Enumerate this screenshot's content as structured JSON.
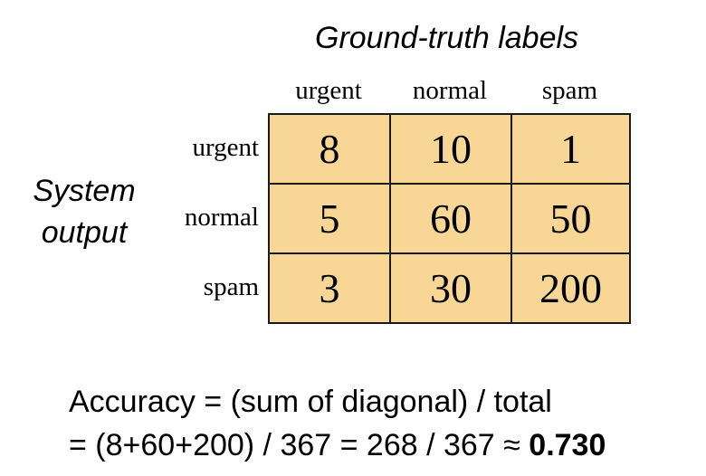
{
  "header": {
    "ground_truth_label": "Ground-truth labels"
  },
  "side": {
    "system_output_line1": "System",
    "system_output_line2": "output"
  },
  "columns": [
    "urgent",
    "normal",
    "spam"
  ],
  "rows": [
    {
      "label": "urgent",
      "cells": [
        "8",
        "10",
        "1"
      ]
    },
    {
      "label": "normal",
      "cells": [
        "5",
        "60",
        "50"
      ]
    },
    {
      "label": "spam",
      "cells": [
        "3",
        "30",
        "200"
      ]
    }
  ],
  "formula": {
    "line1": "Accuracy = (sum of diagonal) / total",
    "line2_prefix": "= (8+60+200) / 367 = 268 / 367 ≈ ",
    "line2_result": "0.730"
  },
  "colors": {
    "cell_fill": "#f8d796",
    "grid_line": "#1a1a1a"
  }
}
